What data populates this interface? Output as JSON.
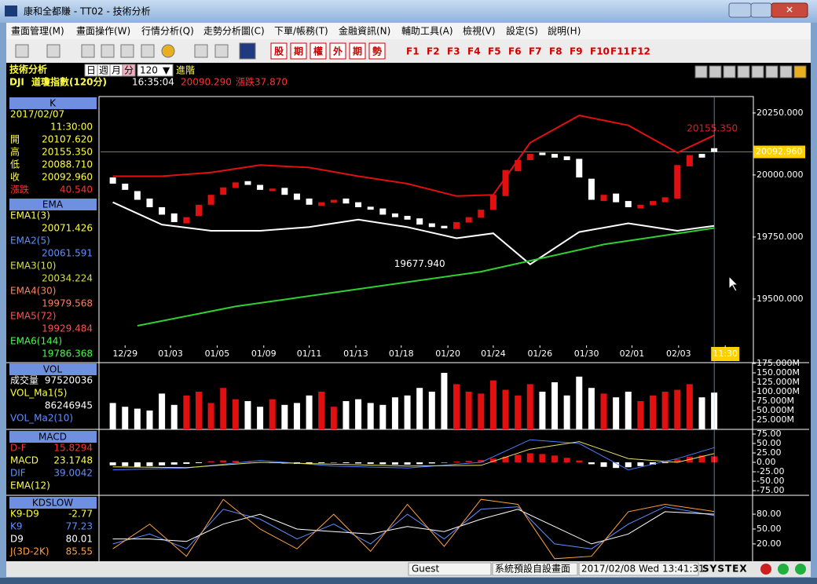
{
  "window": {
    "title": "康和全都賺 - TT02 - 技術分析"
  },
  "menu": [
    "畫面管理(M)",
    "畫面操作(W)",
    "行情分析(Q)",
    "走勢分析圖(C)",
    "下單/帳務(T)",
    "金融資訊(N)",
    "輔助工具(A)",
    "檢視(V)",
    "設定(S)",
    "說明(H)"
  ],
  "toolbar": {
    "quote_buttons": [
      "股",
      "期",
      "權",
      "外",
      "期",
      "勢"
    ],
    "function_keys": [
      "F1",
      "F2",
      "F3",
      "F4",
      "F5",
      "F6",
      "F7",
      "F8",
      "F9",
      "F10",
      "F11",
      "F12"
    ]
  },
  "header": {
    "title": "技術分析",
    "periods": [
      "日",
      "週",
      "月",
      "分"
    ],
    "interval": "120",
    "advanced": "進階"
  },
  "quote": {
    "symbol": "DJI",
    "name": "道瓊指數(120分)",
    "time": "16:35:04",
    "price": "20090.290",
    "change": "漲跌37.870"
  },
  "info": [
    {
      "header": "K",
      "rows": [
        {
          "label": "2017/02/07",
          "color": "#ffff40"
        },
        {
          "value": "11:30:00",
          "color": "#ffff40"
        },
        {
          "label": "開",
          "value": "20107.620",
          "color": "#ffff40"
        },
        {
          "label": "高",
          "value": "20155.350",
          "color": "#ffff40"
        },
        {
          "label": "低",
          "value": "20088.710",
          "color": "#ffff40"
        },
        {
          "label": "收",
          "value": "20092.960",
          "color": "#ffff40"
        },
        {
          "label": "漲跌",
          "value": "40.540",
          "color": "#ff3030"
        }
      ]
    },
    {
      "header": "EMA",
      "rows": [
        {
          "label": "EMA1(3)",
          "color": "#ffff40"
        },
        {
          "value": "20071.426",
          "color": "#ffff40"
        },
        {
          "label": "EMA2(5)",
          "color": "#5f8fff"
        },
        {
          "value": "20061.591",
          "color": "#5f8fff"
        },
        {
          "label": "EMA3(10)",
          "color": "#d0e040"
        },
        {
          "value": "20034.224",
          "color": "#d0e040"
        },
        {
          "label": "EMA4(30)",
          "color": "#ff8060"
        },
        {
          "value": "19979.568",
          "color": "#ff8060"
        },
        {
          "label": "EMA5(72)",
          "color": "#ff5050"
        },
        {
          "value": "19929.484",
          "color": "#ff5050"
        },
        {
          "label": "EMA6(144)",
          "color": "#40ff40"
        },
        {
          "value": "19786.368",
          "color": "#40ff40"
        }
      ]
    },
    {
      "header": "VOL",
      "rows": [
        {
          "label": "成交量",
          "value": "97520036",
          "color": "#ffffff"
        },
        {
          "label": "VOL_Ma1(5)",
          "color": "#ffff40"
        },
        {
          "value": "86246945",
          "color": "#ffffff"
        },
        {
          "label": "VOL_Ma2(10)",
          "color": "#5f8fff"
        }
      ]
    },
    {
      "header": "MACD",
      "rows": [
        {
          "label": "D-F",
          "value": "15.8294",
          "color": "#ff3030"
        },
        {
          "label": "MACD",
          "value": "23.1748",
          "color": "#ffff40"
        },
        {
          "label": "DIF",
          "value": "39.0042",
          "color": "#5f8fff"
        },
        {
          "label": "EMA(12)",
          "color": "#ffff40"
        }
      ]
    },
    {
      "header": "KDSLOW",
      "rows": [
        {
          "label": "K9-D9",
          "value": "-2.77",
          "color": "#ffff40"
        },
        {
          "label": "K9",
          "value": "77.23",
          "color": "#5f8fff"
        },
        {
          "label": "D9",
          "value": "80.01",
          "color": "#ffffff"
        },
        {
          "label": "J(3D-2K)",
          "value": "85.55",
          "color": "#ffa040"
        }
      ]
    }
  ],
  "chart_data": [
    {
      "type": "candlestick",
      "x": [
        0,
        1,
        2,
        3,
        4,
        5,
        6,
        7,
        8,
        9,
        10,
        11,
        12,
        13,
        14,
        15,
        16,
        17,
        18,
        19,
        20,
        21,
        22,
        23,
        24,
        25,
        26,
        27,
        28,
        29,
        30,
        31,
        32,
        33,
        34,
        35,
        36,
        37,
        38,
        39,
        40,
        41,
        42,
        43,
        44,
        45,
        46,
        47,
        48,
        49
      ],
      "open": [
        19990,
        19965,
        19935,
        19905,
        19870,
        19845,
        19805,
        19835,
        19880,
        19920,
        19948,
        19975,
        19960,
        19935,
        19948,
        19925,
        19905,
        19875,
        19888,
        19905,
        19890,
        19872,
        19865,
        19845,
        19835,
        19825,
        19805,
        19795,
        19782,
        19808,
        19828,
        19860,
        19915,
        20015,
        20060,
        20090,
        20085,
        20075,
        20065,
        19985,
        19895,
        19925,
        19895,
        19865,
        19878,
        19890,
        19905,
        20035,
        20085,
        20108
      ],
      "close": [
        19965,
        19940,
        19900,
        19870,
        19840,
        19810,
        19830,
        19880,
        19920,
        19950,
        19970,
        19960,
        19940,
        19945,
        19920,
        19900,
        19880,
        19890,
        19900,
        19885,
        19870,
        19860,
        19840,
        19830,
        19820,
        19800,
        19790,
        19785,
        19810,
        19830,
        19860,
        19920,
        20020,
        20060,
        20085,
        20080,
        20070,
        20060,
        19990,
        19900,
        19920,
        19890,
        19870,
        19880,
        19895,
        19910,
        20040,
        20080,
        20070,
        20093
      ],
      "up_color": "#e01010",
      "down_color": "#ffffff",
      "lines": [
        {
          "color": "#e01010",
          "x": [
            0,
            4,
            8,
            12,
            16,
            20,
            24,
            28,
            31,
            34,
            38,
            42,
            46,
            49
          ],
          "values": [
            19995,
            19995,
            20010,
            20040,
            20030,
            19995,
            19965,
            19915,
            19920,
            20130,
            20240,
            20200,
            20090,
            20160
          ]
        },
        {
          "color": "#ffffff",
          "x": [
            0,
            4,
            8,
            12,
            16,
            20,
            24,
            28,
            31,
            34,
            38,
            42,
            46,
            49
          ],
          "values": [
            19890,
            19800,
            19775,
            19775,
            19790,
            19820,
            19790,
            19745,
            19765,
            19640,
            19770,
            19805,
            19775,
            19795
          ]
        },
        {
          "color": "#30d030",
          "x": [
            2,
            10,
            20,
            30,
            40,
            49
          ],
          "values": [
            19392,
            19470,
            19540,
            19610,
            19720,
            19786
          ]
        }
      ],
      "annotations": [
        {
          "label": "20155.350",
          "value": 20155.35,
          "x": 49,
          "color": "#e02020",
          "position": "above"
        },
        {
          "label": "19677.940",
          "value": 19677.94,
          "x": 25,
          "color": "#ffffff",
          "position": "below"
        }
      ],
      "price_tag": {
        "label": "20092.960",
        "value": 20092.96
      },
      "xlim": [
        -1,
        52
      ],
      "ylim": [
        19313,
        20313
      ],
      "xticks": [
        {
          "value": 1,
          "label": "12/29"
        },
        {
          "value": 4.7,
          "label": "01/03"
        },
        {
          "value": 8.5,
          "label": "01/05"
        },
        {
          "value": 12.3,
          "label": "01/09"
        },
        {
          "value": 16,
          "label": "01/11"
        },
        {
          "value": 19.8,
          "label": "01/13"
        },
        {
          "value": 23.5,
          "label": "01/18"
        },
        {
          "value": 27.3,
          "label": "01/20"
        },
        {
          "value": 31,
          "label": "01/24"
        },
        {
          "value": 34.8,
          "label": "01/26"
        },
        {
          "value": 38.6,
          "label": "01/30"
        },
        {
          "value": 42.3,
          "label": "02/01"
        },
        {
          "value": 46.1,
          "label": "02/03"
        },
        {
          "value": 49.9,
          "label": "11:30"
        }
      ],
      "yticks": [
        {
          "value": 19500,
          "label": "19500.000"
        },
        {
          "value": 19750,
          "label": "19750.000"
        },
        {
          "value": 20000,
          "label": "20000.000"
        },
        {
          "value": 20250,
          "label": "20250.000"
        }
      ]
    },
    {
      "type": "bar",
      "values": [
        70000000,
        60000000,
        55000000,
        50000000,
        95000000,
        65000000,
        90000000,
        100000000,
        70000000,
        110000000,
        80000000,
        75000000,
        60000000,
        80000000,
        65000000,
        70000000,
        90000000,
        100000000,
        60000000,
        75000000,
        80000000,
        70000000,
        65000000,
        85000000,
        90000000,
        110000000,
        100000000,
        150000000,
        120000000,
        100000000,
        95000000,
        130000000,
        105000000,
        90000000,
        120000000,
        100000000,
        125000000,
        90000000,
        140000000,
        110000000,
        95000000,
        85000000,
        100000000,
        75000000,
        90000000,
        100000000,
        105000000,
        120000000,
        85000000,
        97520036
      ],
      "up_color": "#e01010",
      "down_color": "#ffffff",
      "ylim": [
        0,
        175000000
      ],
      "yticks": [
        {
          "value": 25000000,
          "label": "25.000M"
        },
        {
          "value": 50000000,
          "label": "50.000M"
        },
        {
          "value": 75000000,
          "label": "75.000M"
        },
        {
          "value": 100000000,
          "label": "100.000M"
        },
        {
          "value": 125000000,
          "label": "125.000M"
        },
        {
          "value": 150000000,
          "label": "150.000M"
        },
        {
          "value": 175000000,
          "label": "175.000M"
        }
      ]
    },
    {
      "type": "bar",
      "values": [
        -8,
        -10,
        -12,
        -10,
        -8,
        -6,
        -4,
        -2,
        3,
        5,
        4,
        2,
        0,
        -2,
        -3,
        -4,
        -3,
        -2,
        -1,
        -2,
        -3,
        -4,
        -5,
        -6,
        -6,
        -5,
        -3,
        -1,
        2,
        4,
        6,
        10,
        15,
        20,
        24,
        22,
        18,
        12,
        5,
        -5,
        -12,
        -15,
        -13,
        -10,
        -6,
        -2,
        8,
        15,
        18,
        15.8294
      ],
      "up_color": "#e01010",
      "down_color": "#ffffff",
      "lines": [
        {
          "color": "#4a7cff",
          "x": [
            0,
            6,
            12,
            18,
            24,
            30,
            34,
            38,
            42,
            46,
            49
          ],
          "values": [
            -20,
            -15,
            5,
            -10,
            -15,
            0,
            60,
            50,
            -20,
            10,
            39.0042
          ]
        },
        {
          "color": "#e8e060",
          "x": [
            0,
            6,
            12,
            18,
            24,
            30,
            34,
            38,
            42,
            46,
            49
          ],
          "values": [
            -12,
            -14,
            0,
            -5,
            -10,
            -8,
            35,
            55,
            10,
            0,
            23.1748
          ]
        }
      ],
      "ylim": [
        -87.5,
        83.3
      ],
      "yticks": [
        {
          "value": -75,
          "label": "-75.00"
        },
        {
          "value": -50,
          "label": "-50.00"
        },
        {
          "value": -25,
          "label": "-25.00"
        },
        {
          "value": 0,
          "label": "0.00"
        },
        {
          "value": 25,
          "label": "25.00"
        },
        {
          "value": 50,
          "label": "50.00"
        },
        {
          "value": 75,
          "label": "75.00"
        }
      ]
    },
    {
      "type": "line",
      "lines": [
        {
          "color": "#5f8fff",
          "x": [
            0,
            3,
            6,
            9,
            12,
            15,
            18,
            21,
            24,
            27,
            30,
            33,
            36,
            39,
            42,
            45,
            49
          ],
          "values": [
            20,
            40,
            10,
            90,
            70,
            30,
            60,
            20,
            80,
            30,
            90,
            95,
            20,
            10,
            60,
            95,
            77.23
          ]
        },
        {
          "color": "#ffffff",
          "x": [
            0,
            3,
            6,
            9,
            12,
            15,
            18,
            21,
            24,
            27,
            30,
            33,
            36,
            39,
            42,
            45,
            49
          ],
          "values": [
            30,
            30,
            25,
            60,
            80,
            50,
            45,
            40,
            55,
            45,
            70,
            90,
            55,
            20,
            40,
            85,
            80.01
          ]
        },
        {
          "color": "#ffa040",
          "x": [
            0,
            3,
            6,
            9,
            12,
            15,
            18,
            21,
            24,
            27,
            30,
            33,
            36,
            39,
            42,
            45,
            49
          ],
          "values": [
            10,
            60,
            -5,
            110,
            50,
            10,
            80,
            5,
            100,
            15,
            110,
            100,
            -10,
            -5,
            85,
            100,
            85.55
          ]
        }
      ],
      "ylim": [
        -15,
        115
      ],
      "yticks": [
        {
          "value": 20,
          "label": "20.00"
        },
        {
          "value": 50,
          "label": "50.00"
        },
        {
          "value": 80,
          "label": "80.00"
        }
      ]
    }
  ],
  "status": {
    "user": "Guest",
    "layout": "系統預設自設畫面",
    "datetime": "2017/02/08 Wed 13:41:31",
    "brand": "SYSTEX"
  }
}
